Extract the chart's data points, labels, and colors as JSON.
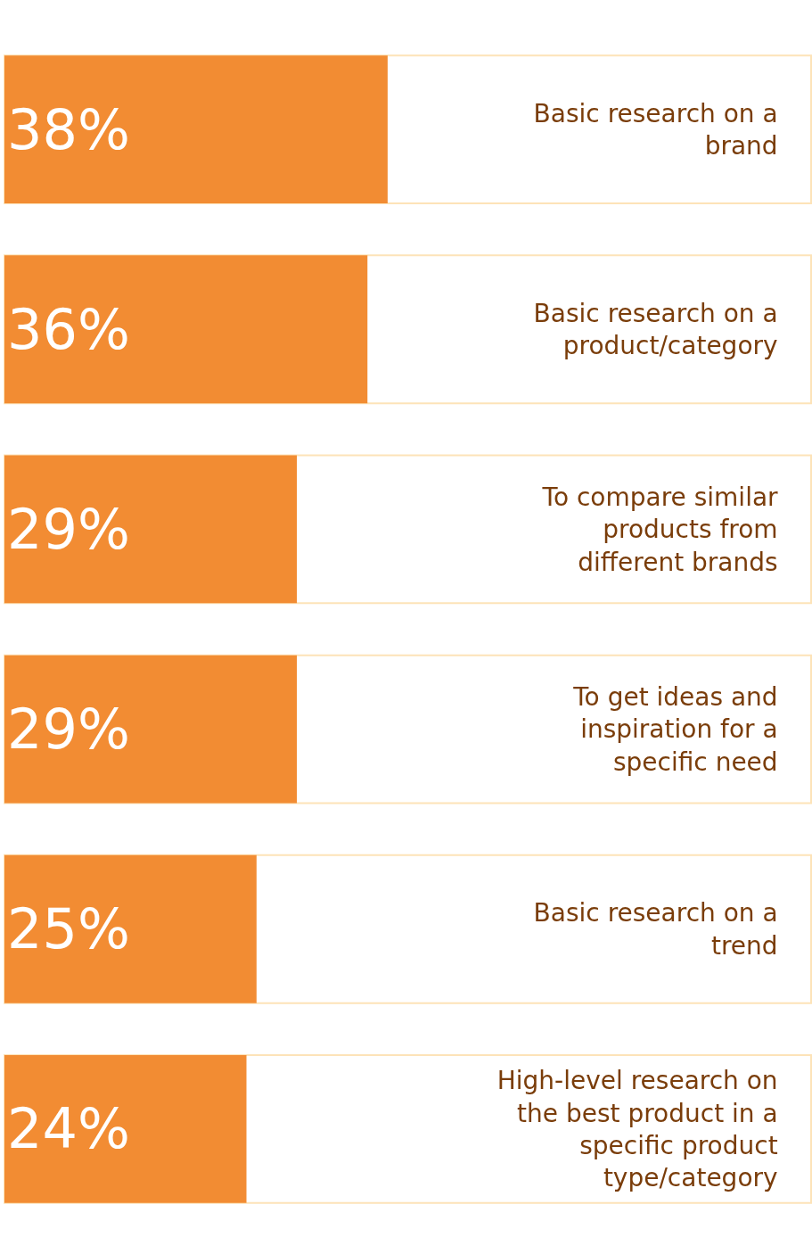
{
  "chart_data": {
    "type": "bar",
    "orientation": "horizontal",
    "categories": [
      "Basic research on a brand",
      "Basic research on a product/category",
      "To compare similar products from different brands",
      "To get ideas and inspiration for a specific need",
      "Basic research on a trend",
      "High-level research on the best product in a specific product type/category"
    ],
    "values": [
      38,
      36,
      29,
      29,
      25,
      24
    ],
    "value_labels": [
      "38%",
      "36%",
      "29%",
      "29%",
      "25%",
      "24%"
    ],
    "color": "#f28c33"
  }
}
